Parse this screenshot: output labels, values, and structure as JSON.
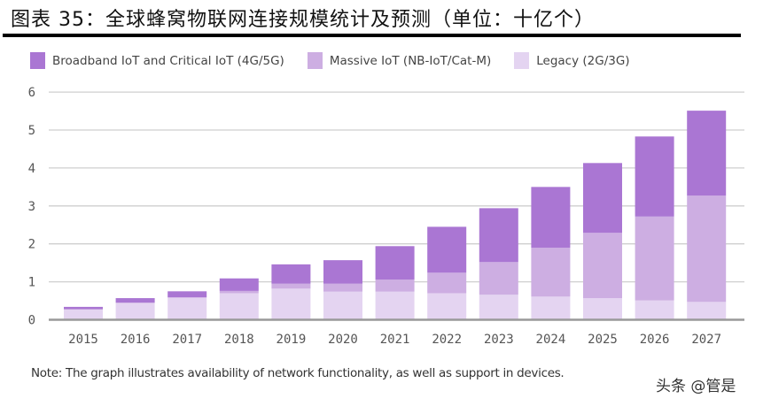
{
  "title": "图表 35：全球蜂窝物联网连接规模统计及预测（单位：十亿个）",
  "note": "Note: The graph illustrates availability of network functionality, as well as support in devices.",
  "watermark": "头条 @管是",
  "chart_data": {
    "type": "bar",
    "stacked": true,
    "title": "图表 35：全球蜂窝物联网连接规模统计及预测（单位：十亿个）",
    "xlabel": "",
    "ylabel": "",
    "ylim": [
      0,
      6
    ],
    "yticks": [
      "0",
      "1",
      "2",
      "3",
      "4",
      "5",
      "6"
    ],
    "grid": true,
    "legend_placement": "top-left",
    "categories": [
      "2015",
      "2016",
      "2017",
      "2018",
      "2019",
      "2020",
      "2021",
      "2022",
      "2023",
      "2024",
      "2025",
      "2026",
      "2027"
    ],
    "series": [
      {
        "name": "Legacy (2G/3G)",
        "color": "#e4d4f1",
        "values": [
          0.27,
          0.44,
          0.58,
          0.7,
          0.82,
          0.74,
          0.74,
          0.7,
          0.66,
          0.61,
          0.57,
          0.51,
          0.47
        ]
      },
      {
        "name": "Massive IoT (NB-IoT/Cat-M)",
        "color": "#cdaee2",
        "values": [
          0.01,
          0.01,
          0.01,
          0.06,
          0.13,
          0.21,
          0.32,
          0.54,
          0.86,
          1.29,
          1.72,
          2.21,
          2.8
        ]
      },
      {
        "name": "Broadband IoT and Critical IoT (4G/5G)",
        "color": "#aa76d3",
        "values": [
          0.06,
          0.12,
          0.16,
          0.33,
          0.51,
          0.62,
          0.88,
          1.21,
          1.42,
          1.6,
          1.84,
          2.11,
          2.24
        ]
      }
    ],
    "legend_order": [
      2,
      1,
      0
    ]
  }
}
